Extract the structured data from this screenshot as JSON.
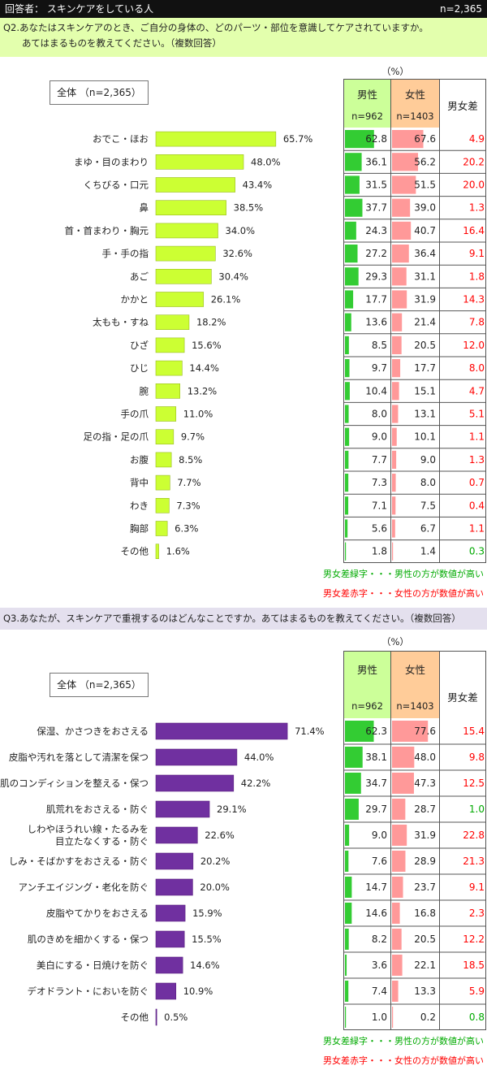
{
  "header": {
    "respondents": "回答者： スキンケアをしている人",
    "n_total": "n=2,365"
  },
  "q2": {
    "title_line1": "Q2.あなたはスキンケアのとき、ご自分の身体の、どのパーツ・部位を意識してケアされていますか。",
    "title_line2": "あてはまるものを教えてください。（複数回答）"
  },
  "q3": {
    "title": "Q3.あなたが、スキンケアで重視するのはどんなことですか。あてはまるものを教えてください。（複数回答）"
  },
  "table_labels": {
    "unit": "（%）",
    "total": "全体 （n=2,365）",
    "male": "男性",
    "female": "女性",
    "male_n": "n=962",
    "female_n": "n=1403",
    "diff": "男女差"
  },
  "legend": {
    "green": "男女差緑字・・・男性の方が数値が高い",
    "red": "男女差赤字・・・女性の方が数値が高い"
  },
  "colors": {
    "q2_bar": "#ccff33",
    "q3_bar": "#7030a0",
    "male_bar": "#33cc33",
    "female_bar": "#ff9999",
    "diff_green": "#00aa00",
    "diff_red": "#ff0000",
    "q2_header_bg": "#e3ffad",
    "q3_header_bg": "#e4e0ee"
  },
  "chart_data": [
    {
      "type": "bar",
      "orientation": "horizontal",
      "categories": [
        "おでこ・ほお",
        "まゆ・目のまわり",
        "くちびる・口元",
        "鼻",
        "首・首まわり・胸元",
        "手・手の指",
        "あご",
        "かかと",
        "太もも・すね",
        "ひざ",
        "ひじ",
        "腕",
        "手の爪",
        "足の指・足の爪",
        "お腹",
        "背中",
        "わき",
        "胸部",
        "その他"
      ],
      "series": [
        {
          "name": "全体 （n=2,365）",
          "values": [
            65.7,
            48.0,
            43.4,
            38.5,
            34.0,
            32.6,
            30.4,
            26.1,
            18.2,
            15.6,
            14.4,
            13.2,
            11.0,
            9.7,
            8.5,
            7.7,
            7.3,
            6.3,
            1.6
          ]
        },
        {
          "name": "男性",
          "values": [
            62.8,
            36.1,
            31.5,
            37.7,
            24.3,
            27.2,
            29.3,
            17.7,
            13.6,
            8.5,
            9.7,
            10.4,
            8.0,
            9.0,
            7.7,
            7.3,
            7.1,
            5.6,
            1.8
          ]
        },
        {
          "name": "女性",
          "values": [
            67.6,
            56.2,
            51.5,
            39.0,
            40.7,
            36.4,
            31.1,
            31.9,
            21.4,
            20.5,
            17.7,
            15.1,
            13.1,
            10.1,
            9.0,
            8.0,
            7.5,
            6.7,
            1.4
          ]
        },
        {
          "name": "男女差",
          "values": [
            4.9,
            20.2,
            20.0,
            1.3,
            16.4,
            9.1,
            1.8,
            14.3,
            7.8,
            12.0,
            8.0,
            4.7,
            5.1,
            1.1,
            1.3,
            0.7,
            0.4,
            1.1,
            0.3
          ],
          "higher": [
            "f",
            "f",
            "f",
            "f",
            "f",
            "f",
            "f",
            "f",
            "f",
            "f",
            "f",
            "f",
            "f",
            "f",
            "f",
            "f",
            "f",
            "f",
            "m"
          ]
        }
      ]
    },
    {
      "type": "bar",
      "orientation": "horizontal",
      "categories": [
        "保湿、かさつきをおさえる",
        "皮脂や汚れを落として清潔を保つ",
        "肌のコンディションを整える・保つ",
        "肌荒れをおさえる・防ぐ",
        "しわやほうれい線・たるみを\n目立たなくする・防ぐ",
        "しみ・そばかすをおさえる・防ぐ",
        "アンチエイジング・老化を防ぐ",
        "皮脂やてかりをおさえる",
        "肌のきめを細かくする・保つ",
        "美白にする・日焼けを防ぐ",
        "デオドラント・においを防ぐ",
        "その他"
      ],
      "series": [
        {
          "name": "全体 （n=2,365）",
          "values": [
            71.4,
            44.0,
            42.2,
            29.1,
            22.6,
            20.2,
            20.0,
            15.9,
            15.5,
            14.6,
            10.9,
            0.5
          ]
        },
        {
          "name": "男性",
          "values": [
            62.3,
            38.1,
            34.7,
            29.7,
            9.0,
            7.6,
            14.7,
            14.6,
            8.2,
            3.6,
            7.4,
            1.0
          ]
        },
        {
          "name": "女性",
          "values": [
            77.6,
            48.0,
            47.3,
            28.7,
            31.9,
            28.9,
            23.7,
            16.8,
            20.5,
            22.1,
            13.3,
            0.2
          ]
        },
        {
          "name": "男女差",
          "values": [
            15.4,
            9.8,
            12.5,
            1.0,
            22.8,
            21.3,
            9.1,
            2.3,
            12.2,
            18.5,
            5.9,
            0.8
          ],
          "higher": [
            "f",
            "f",
            "f",
            "m",
            "f",
            "f",
            "f",
            "f",
            "f",
            "f",
            "f",
            "m"
          ]
        }
      ]
    }
  ]
}
